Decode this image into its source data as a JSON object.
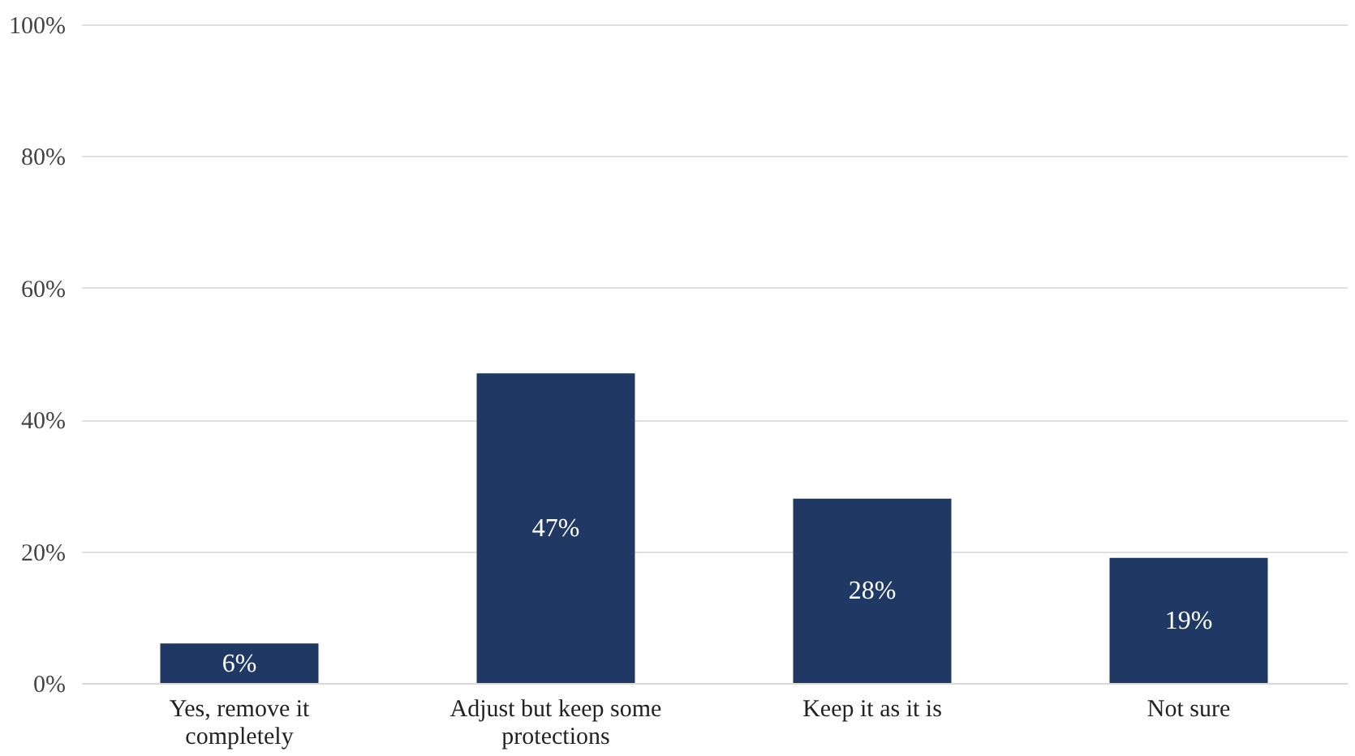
{
  "chart_data": {
    "type": "bar",
    "categories": [
      "Yes, remove it completely",
      "Adjust but keep some protections",
      "Keep it as it is",
      "Not sure"
    ],
    "values": [
      6,
      47,
      28,
      19
    ],
    "color": "#1f3864",
    "value_labels": [
      "6%",
      "47%",
      "28%",
      "19%"
    ],
    "ylim": [
      0,
      100
    ],
    "yticks": [
      {
        "value": 0,
        "label": "0%"
      },
      {
        "value": 20,
        "label": "20%"
      },
      {
        "value": 40,
        "label": "40%"
      },
      {
        "value": 60,
        "label": "60%"
      },
      {
        "value": 80,
        "label": "80%"
      },
      {
        "value": 100,
        "label": "100%"
      }
    ],
    "grid": "y"
  }
}
